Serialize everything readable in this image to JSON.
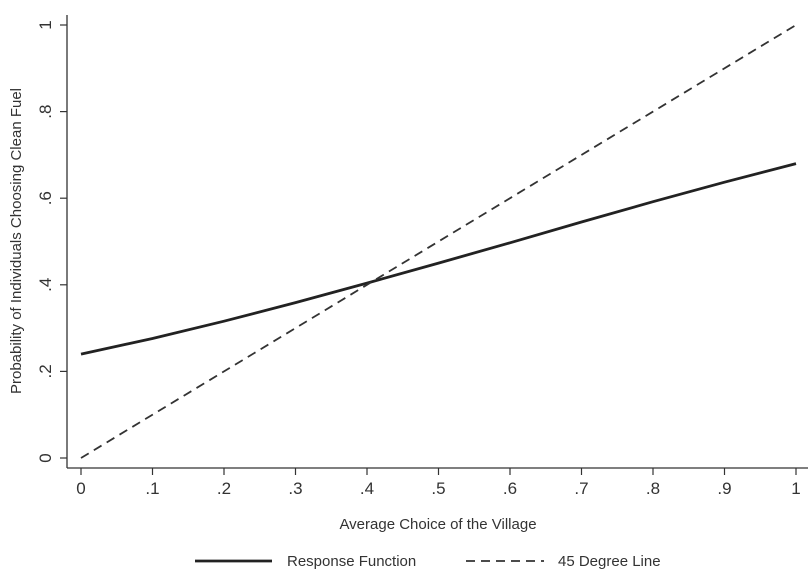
{
  "chart_data": {
    "type": "line",
    "title": "",
    "xlabel": "Average Choice of the Village",
    "ylabel": "Probability of Individuals Choosing Clean Fuel",
    "xlim": [
      0,
      1
    ],
    "ylim": [
      0,
      1
    ],
    "x_ticks": [
      0,
      0.1,
      0.2,
      0.3,
      0.4,
      0.5,
      0.6,
      0.7,
      0.8,
      0.9,
      1
    ],
    "x_tick_labels": [
      "0",
      ".1",
      ".2",
      ".3",
      ".4",
      ".5",
      ".6",
      ".7",
      ".8",
      ".9",
      "1"
    ],
    "y_ticks": [
      0,
      0.2,
      0.4,
      0.6,
      0.8,
      1
    ],
    "y_tick_labels": [
      "0",
      ".2",
      ".4",
      ".6",
      ".8",
      "1"
    ],
    "grid": false,
    "legend_position": "bottom",
    "series": [
      {
        "name": "Response Function",
        "style": "solid",
        "color": "#222222",
        "x": [
          0,
          0.1,
          0.2,
          0.3,
          0.4,
          0.5,
          0.6,
          0.7,
          0.8,
          0.9,
          1
        ],
        "y": [
          0.24,
          0.276,
          0.316,
          0.359,
          0.404,
          0.45,
          0.497,
          0.545,
          0.592,
          0.637,
          0.68
        ]
      },
      {
        "name": "45 Degree Line",
        "style": "dashed",
        "color": "#333333",
        "x": [
          0,
          1
        ],
        "y": [
          0,
          1
        ]
      }
    ]
  }
}
